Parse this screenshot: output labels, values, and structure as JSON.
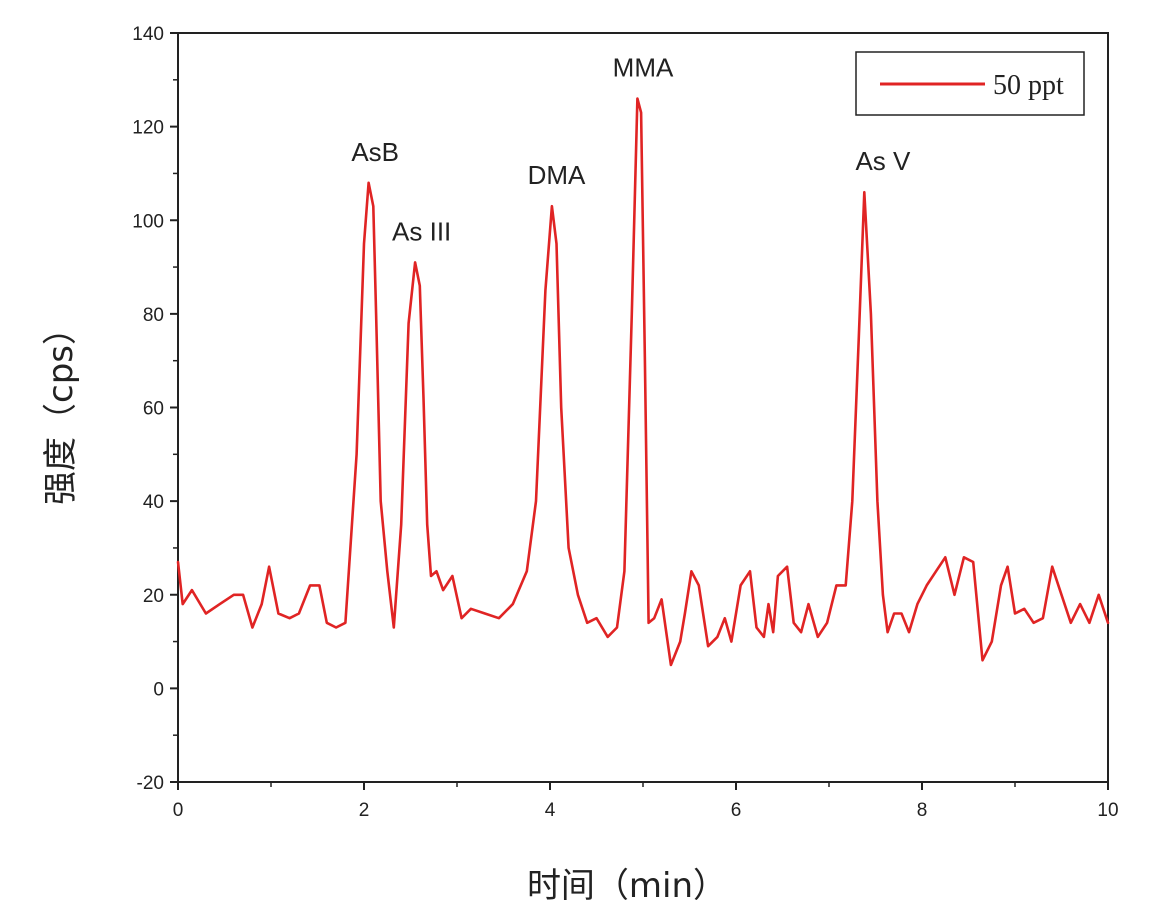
{
  "chart_data": {
    "type": "line",
    "xlabel": "时间（min）",
    "ylabel": "强度（cps）",
    "xlim": [
      0,
      10
    ],
    "ylim": [
      -20,
      140
    ],
    "x_ticks": [
      0,
      2,
      4,
      6,
      8,
      10
    ],
    "y_ticks": [
      -20,
      0,
      20,
      40,
      60,
      80,
      100,
      120,
      140
    ],
    "x_tick_labels": [
      "0",
      "2",
      "4",
      "6",
      "8",
      "10"
    ],
    "y_tick_labels": [
      "-20",
      "0",
      "20",
      "40",
      "60",
      "80",
      "100",
      "120",
      "140"
    ],
    "grid": false,
    "legend": {
      "position": "top-right",
      "entries": [
        "50 ppt"
      ]
    },
    "color": "#e02424",
    "series": [
      {
        "name": "50 ppt",
        "x": [
          0.0,
          0.05,
          0.15,
          0.3,
          0.45,
          0.6,
          0.7,
          0.8,
          0.9,
          0.98,
          1.08,
          1.2,
          1.3,
          1.42,
          1.52,
          1.6,
          1.7,
          1.8,
          1.92,
          2.0,
          2.05,
          2.1,
          2.13,
          2.18,
          2.25,
          2.32,
          2.4,
          2.48,
          2.55,
          2.6,
          2.64,
          2.68,
          2.72,
          2.78,
          2.85,
          2.95,
          3.05,
          3.15,
          3.3,
          3.45,
          3.6,
          3.75,
          3.85,
          3.95,
          4.02,
          4.07,
          4.12,
          4.2,
          4.3,
          4.4,
          4.5,
          4.62,
          4.72,
          4.8,
          4.88,
          4.94,
          4.98,
          5.02,
          5.06,
          5.12,
          5.2,
          5.3,
          5.4,
          5.45,
          5.52,
          5.6,
          5.7,
          5.8,
          5.88,
          5.95,
          6.05,
          6.15,
          6.22,
          6.3,
          6.35,
          6.4,
          6.45,
          6.55,
          6.62,
          6.7,
          6.78,
          6.88,
          6.98,
          7.08,
          7.18,
          7.25,
          7.32,
          7.38,
          7.45,
          7.52,
          7.58,
          7.63,
          7.7,
          7.78,
          7.86,
          7.95,
          8.05,
          8.15,
          8.25,
          8.35,
          8.45,
          8.55,
          8.65,
          8.75,
          8.85,
          8.92,
          9.0,
          9.1,
          9.2,
          9.3,
          9.4,
          9.5,
          9.6,
          9.7,
          9.8,
          9.9,
          10.0
        ],
        "values": [
          27,
          18,
          21,
          16,
          18,
          20,
          20,
          13,
          18,
          26,
          16,
          15,
          16,
          22,
          22,
          14,
          13,
          14,
          50,
          95,
          108,
          103,
          80,
          40,
          25,
          13,
          35,
          78,
          91,
          86,
          62,
          35,
          24,
          25,
          21,
          24,
          15,
          17,
          16,
          15,
          18,
          25,
          40,
          85,
          103,
          95,
          60,
          30,
          20,
          14,
          15,
          11,
          13,
          25,
          80,
          126,
          123,
          70,
          14,
          15,
          19,
          5,
          10,
          16,
          25,
          22,
          9,
          11,
          15,
          10,
          22,
          25,
          13,
          11,
          18,
          12,
          24,
          26,
          14,
          12,
          18,
          11,
          14,
          22,
          22,
          40,
          75,
          106,
          80,
          40,
          20,
          12,
          16,
          16,
          12,
          18,
          22,
          25,
          28,
          20,
          28,
          27,
          6,
          10,
          22,
          26,
          16,
          17,
          14,
          15,
          26,
          20,
          14,
          18,
          14,
          20,
          14
        ]
      }
    ],
    "annotations": [
      {
        "text": "AsB",
        "x": 2.12,
        "y": 108
      },
      {
        "text": "As III",
        "x": 2.62,
        "y": 91
      },
      {
        "text": "DMA",
        "x": 4.07,
        "y": 103
      },
      {
        "text": "MMA",
        "x": 5.0,
        "y": 126
      },
      {
        "text": "As V",
        "x": 7.58,
        "y": 106
      }
    ]
  }
}
